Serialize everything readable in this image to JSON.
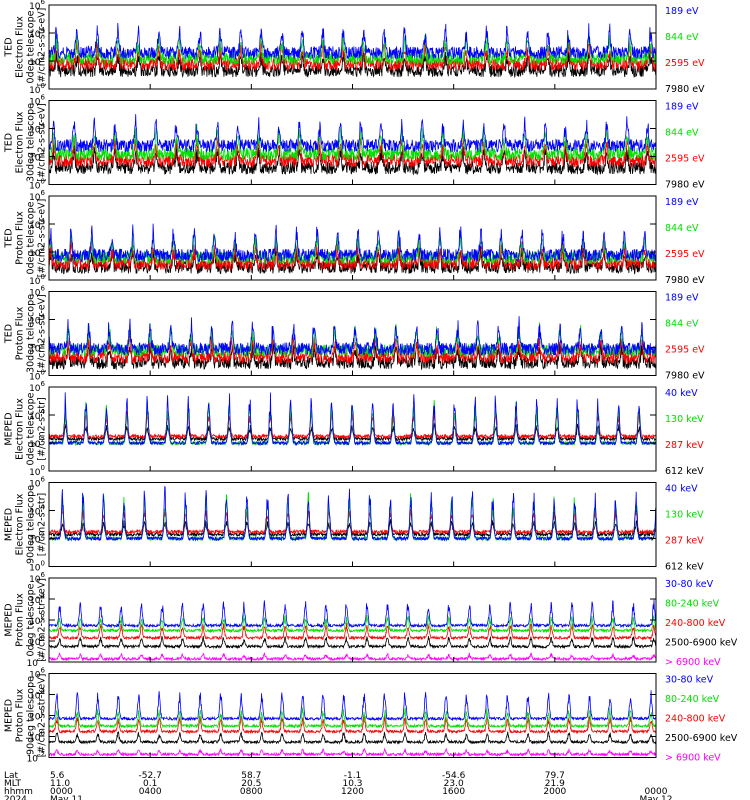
{
  "colors": {
    "blue": "#0000ff",
    "green": "#00e000",
    "red": "#ff0000",
    "black": "#000000",
    "magenta": "#ff00ff"
  },
  "chart_data": [
    {
      "type": "line",
      "instrument": "TED",
      "ylabel": [
        "TED",
        "Electron Flux",
        "0deg telescope",
        "[#/cm2-s-str-eV]"
      ],
      "ylim": [
        1,
        1000000
      ],
      "yscale": "log",
      "yticks": [
        {
          "label": "10",
          "exp": "0",
          "v": 1
        },
        {
          "label": "10",
          "exp": "2",
          "v": 100
        },
        {
          "label": "10",
          "exp": "4",
          "v": 10000
        },
        {
          "label": "10",
          "exp": "6",
          "v": 1000000
        }
      ],
      "series": [
        {
          "name": "7980 eV",
          "color": "#000000",
          "base": 20,
          "peak": 400
        },
        {
          "name": "2595 eV",
          "color": "#ff0000",
          "base": 60,
          "peak": 1500
        },
        {
          "name": "844 eV",
          "color": "#00e000",
          "base": 150,
          "peak": 6000
        },
        {
          "name": "189 eV",
          "color": "#0000ff",
          "base": 400,
          "peak": 30000
        }
      ]
    },
    {
      "type": "line",
      "instrument": "TED",
      "ylabel": [
        "TED",
        "Electron Flux",
        "30deg telescope",
        "[#/cm2-s-str-eV]"
      ],
      "ylim": [
        1,
        1000000
      ],
      "yscale": "log",
      "yticks": [
        {
          "label": "10",
          "exp": "0",
          "v": 1
        },
        {
          "label": "10",
          "exp": "2",
          "v": 100
        },
        {
          "label": "10",
          "exp": "4",
          "v": 10000
        },
        {
          "label": "10",
          "exp": "6",
          "v": 1000000
        }
      ],
      "series": [
        {
          "name": "7980 eV",
          "color": "#000000",
          "base": 15,
          "peak": 400
        },
        {
          "name": "2595 eV",
          "color": "#ff0000",
          "base": 50,
          "peak": 1500
        },
        {
          "name": "844 eV",
          "color": "#00e000",
          "base": 150,
          "peak": 8000
        },
        {
          "name": "189 eV",
          "color": "#0000ff",
          "base": 600,
          "peak": 50000
        }
      ]
    },
    {
      "type": "line",
      "instrument": "TED",
      "ylabel": [
        "TED",
        "Proton Flux",
        "0deg telescope",
        "[#/cm2-s-str-eV]"
      ],
      "ylim": [
        1,
        1000000
      ],
      "yscale": "log",
      "yticks": [
        {
          "label": "10",
          "exp": "0",
          "v": 1
        },
        {
          "label": "10",
          "exp": "2",
          "v": 100
        },
        {
          "label": "10",
          "exp": "4",
          "v": 10000
        },
        {
          "label": "10",
          "exp": "6",
          "v": 1000000
        }
      ],
      "series": [
        {
          "name": "7980 eV",
          "color": "#000000",
          "base": 8,
          "peak": 150
        },
        {
          "name": "2595 eV",
          "color": "#ff0000",
          "base": 15,
          "peak": 300
        },
        {
          "name": "844 eV",
          "color": "#00e000",
          "base": 40,
          "peak": 1500
        },
        {
          "name": "189 eV",
          "color": "#0000ff",
          "base": 60,
          "peak": 5000
        }
      ]
    },
    {
      "type": "line",
      "instrument": "TED",
      "ylabel": [
        "TED",
        "Proton Flux",
        "30deg telescope",
        "[#/cm2-s-str-eV]"
      ],
      "ylim": [
        1,
        1000000
      ],
      "yscale": "log",
      "yticks": [
        {
          "label": "10",
          "exp": "0",
          "v": 1
        },
        {
          "label": "10",
          "exp": "2",
          "v": 100
        },
        {
          "label": "10",
          "exp": "4",
          "v": 10000
        },
        {
          "label": "10",
          "exp": "6",
          "v": 1000000
        }
      ],
      "series": [
        {
          "name": "7980 eV",
          "color": "#000000",
          "base": 8,
          "peak": 150
        },
        {
          "name": "2595 eV",
          "color": "#ff0000",
          "base": 20,
          "peak": 400
        },
        {
          "name": "844 eV",
          "color": "#00e000",
          "base": 60,
          "peak": 3000
        },
        {
          "name": "189 eV",
          "color": "#0000ff",
          "base": 80,
          "peak": 8000
        }
      ]
    },
    {
      "type": "line",
      "instrument": "MEPED",
      "ylabel": [
        "MEPED",
        "Electron Flux",
        "0deg telescope",
        "[#/cm2-s-str]"
      ],
      "ylim": [
        1,
        1000000
      ],
      "yscale": "log",
      "yticks": [
        {
          "label": "10",
          "exp": "0",
          "v": 1
        },
        {
          "label": "10",
          "exp": "2",
          "v": 100
        },
        {
          "label": "10",
          "exp": "4",
          "v": 10000
        },
        {
          "label": "10",
          "exp": "6",
          "v": 1000000
        }
      ],
      "series": [
        {
          "name": "612 keV",
          "color": "#000000",
          "base": 200,
          "peak": 2000
        },
        {
          "name": "287 keV",
          "color": "#ff0000",
          "base": 300,
          "peak": 20000
        },
        {
          "name": "130 keV",
          "color": "#00e000",
          "base": 100,
          "peak": 100000
        },
        {
          "name": "40 keV",
          "color": "#0000ff",
          "base": 100,
          "peak": 500000
        }
      ]
    },
    {
      "type": "line",
      "instrument": "MEPED",
      "ylabel": [
        "MEPED",
        "Electron Flux",
        "90deg telescope",
        "[#/cm2-s-str]"
      ],
      "ylim": [
        1,
        1000000
      ],
      "yscale": "log",
      "yticks": [
        {
          "label": "10",
          "exp": "0",
          "v": 1
        },
        {
          "label": "10",
          "exp": "2",
          "v": 100
        },
        {
          "label": "10",
          "exp": "4",
          "v": 10000
        },
        {
          "label": "10",
          "exp": "6",
          "v": 1000000
        }
      ],
      "series": [
        {
          "name": "612 keV",
          "color": "#000000",
          "base": 200,
          "peak": 2000
        },
        {
          "name": "287 keV",
          "color": "#ff0000",
          "base": 300,
          "peak": 20000
        },
        {
          "name": "130 keV",
          "color": "#00e000",
          "base": 100,
          "peak": 200000
        },
        {
          "name": "40 keV",
          "color": "#0000ff",
          "base": 100,
          "peak": 500000
        }
      ]
    },
    {
      "type": "line",
      "instrument": "MEPED",
      "ylabel": [
        "MEPED",
        "Proton Flux",
        "0deg telescope",
        "[#/cm2-s-str-keV]"
      ],
      "ylim": [
        0.01,
        1000000
      ],
      "yscale": "log",
      "yticks": [
        {
          "label": "10",
          "exp": "-2",
          "v": 0.01
        },
        {
          "label": "10",
          "exp": "0",
          "v": 1
        },
        {
          "label": "10",
          "exp": "2",
          "v": 100
        },
        {
          "label": "10",
          "exp": "4",
          "v": 10000
        },
        {
          "label": "10",
          "exp": "6",
          "v": 1000000
        }
      ],
      "series": [
        {
          "name": "> 6900 keV",
          "color": "#ff00ff",
          "base": 0.02,
          "peak": 0.06
        },
        {
          "name": "2500-6900 keV",
          "color": "#000000",
          "base": 0.3,
          "peak": 3
        },
        {
          "name": "240-800 keV",
          "color": "#ff0000",
          "base": 2,
          "peak": 50
        },
        {
          "name": "80-240 keV",
          "color": "#00e000",
          "base": 10,
          "peak": 300
        },
        {
          "name": "30-80 keV",
          "color": "#0000ff",
          "base": 30,
          "peak": 10000
        }
      ]
    },
    {
      "type": "line",
      "instrument": "MEPED",
      "ylabel": [
        "MEPED",
        "Proton Flux",
        "90deg telescope",
        "[#/cm2-s-str-keV]"
      ],
      "ylim": [
        0.01,
        1000000
      ],
      "yscale": "log",
      "yticks": [
        {
          "label": "10",
          "exp": "-2",
          "v": 0.01
        },
        {
          "label": "10",
          "exp": "0",
          "v": 1
        },
        {
          "label": "10",
          "exp": "2",
          "v": 100
        },
        {
          "label": "10",
          "exp": "4",
          "v": 10000
        },
        {
          "label": "10",
          "exp": "6",
          "v": 1000000
        }
      ],
      "series": [
        {
          "name": "> 6900 keV",
          "color": "#ff00ff",
          "base": 0.02,
          "peak": 0.06
        },
        {
          "name": "2500-6900 keV",
          "color": "#000000",
          "base": 0.3,
          "peak": 3
        },
        {
          "name": "240-800 keV",
          "color": "#ff0000",
          "base": 3,
          "peak": 100
        },
        {
          "name": "80-240 keV",
          "color": "#00e000",
          "base": 10,
          "peak": 500
        },
        {
          "name": "30-80 keV",
          "color": "#0000ff",
          "base": 50,
          "peak": 30000
        }
      ]
    }
  ],
  "x_axis": {
    "row_labels": [
      "Lat",
      "MLT",
      "hhmm",
      "2024"
    ],
    "ticks": [
      {
        "hour": 0,
        "lat": "5.6",
        "mlt": "11.0",
        "hhmm": "0000",
        "date": "May 11"
      },
      {
        "hour": 4,
        "lat": "-52.7",
        "mlt": "0.1",
        "hhmm": "0400",
        "date": ""
      },
      {
        "hour": 8,
        "lat": "58.7",
        "mlt": "20.5",
        "hhmm": "0800",
        "date": ""
      },
      {
        "hour": 12,
        "lat": "-1.1",
        "mlt": "10.3",
        "hhmm": "1200",
        "date": ""
      },
      {
        "hour": 16,
        "lat": "-54.6",
        "mlt": "23.0",
        "hhmm": "1600",
        "date": ""
      },
      {
        "hour": 20,
        "lat": "79.7",
        "mlt": "21.9",
        "hhmm": "2000",
        "date": ""
      },
      {
        "hour": 24,
        "lat": "",
        "mlt": "",
        "hhmm": "0000",
        "date": "May 12"
      }
    ]
  }
}
